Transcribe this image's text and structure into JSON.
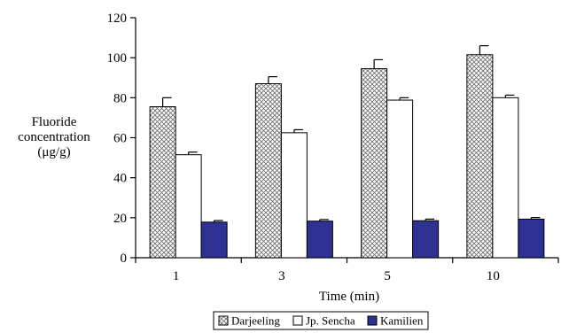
{
  "chart_data": {
    "type": "bar",
    "categories": [
      "1",
      "3",
      "5",
      "10"
    ],
    "series": [
      {
        "name": "Darjeeling",
        "values": [
          75.5,
          87.0,
          94.5,
          101.5
        ],
        "errors": [
          4.5,
          3.5,
          4.5,
          4.5
        ],
        "pattern": "crosshatch",
        "color": "#7a7a7a"
      },
      {
        "name": "Jp. Sencha",
        "values": [
          51.5,
          62.5,
          78.8,
          80.0
        ],
        "errors": [
          1.3,
          1.5,
          1.2,
          1.3
        ],
        "pattern": "none",
        "color": "#ffffff"
      },
      {
        "name": "Kamilien",
        "values": [
          17.8,
          18.3,
          18.5,
          19.3
        ],
        "errors": [
          0.8,
          0.8,
          0.8,
          0.8
        ],
        "pattern": "solid",
        "color": "#2e3192"
      }
    ],
    "ylabel_lines": [
      "Fluoride",
      "concentration",
      "(μg/g)"
    ],
    "xlabel": "Time (min)",
    "ylim": [
      0,
      120
    ],
    "yticks": [
      0,
      20,
      40,
      60,
      80,
      100,
      120
    ],
    "grid": false,
    "legend_position": "bottom-center"
  }
}
